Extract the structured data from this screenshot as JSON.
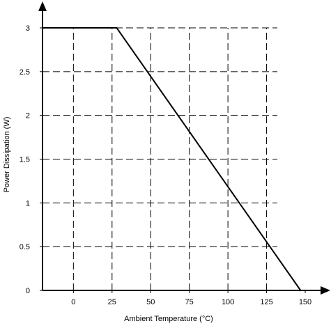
{
  "chart_data": {
    "type": "line",
    "title": "",
    "xlabel": "Ambient Temperature (°C)",
    "ylabel": "Power Dissipation (W)",
    "xlim": [
      -20,
      150
    ],
    "ylim": [
      0,
      3
    ],
    "x_ticks": [
      0,
      25,
      50,
      75,
      100,
      125,
      150
    ],
    "x_tick_labels": [
      "0",
      "25",
      "50",
      "75",
      "100",
      "125",
      "150"
    ],
    "y_ticks": [
      0,
      0.5,
      1,
      1.5,
      2,
      2.5,
      3
    ],
    "y_tick_labels": [
      "0",
      "0.5",
      "1",
      "1.5",
      "2",
      "2.5",
      "3"
    ],
    "grid": "dashed",
    "series": [
      {
        "x": [
          -20,
          28,
          147
        ],
        "y": [
          3,
          3,
          0
        ]
      }
    ],
    "colors": {
      "line": "#000000",
      "grid": "#000000",
      "axis": "#000000"
    }
  }
}
